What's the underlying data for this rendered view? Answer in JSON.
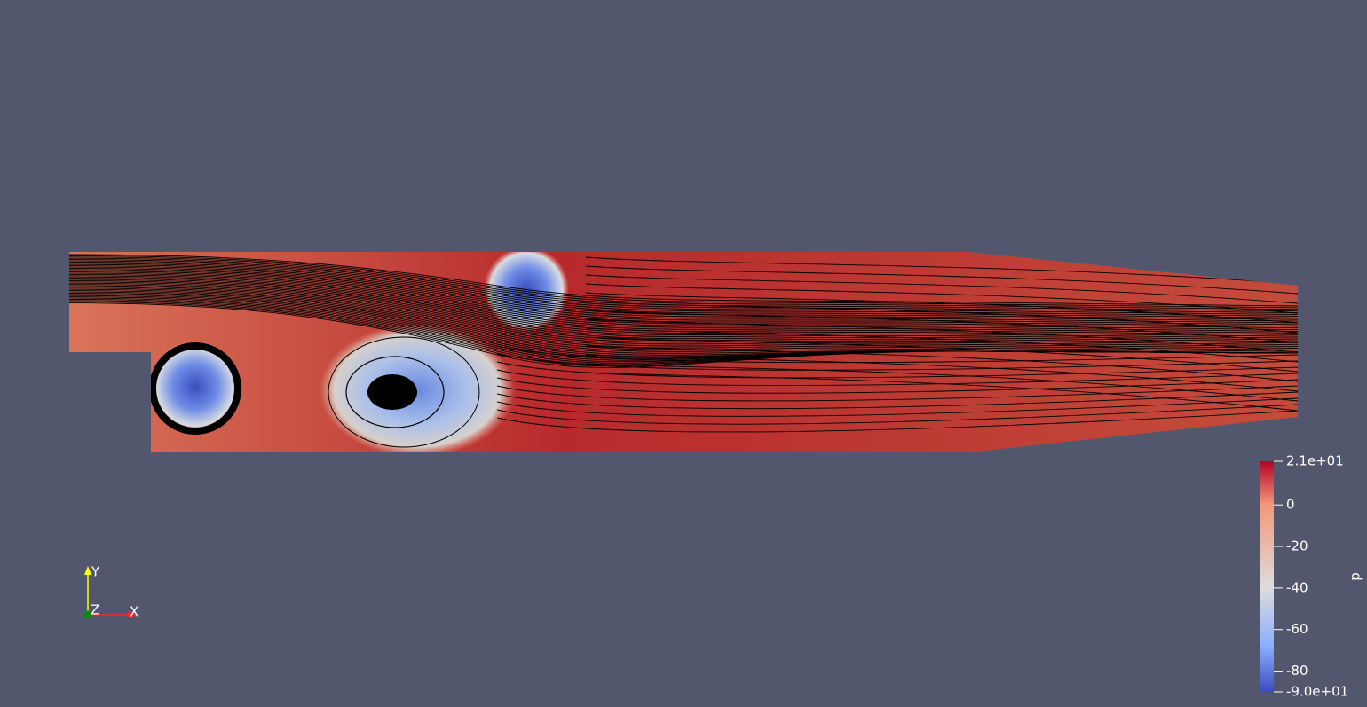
{
  "colorbar": {
    "title": "p",
    "range": [
      -90,
      21
    ],
    "ticks": [
      {
        "value": 21,
        "label": "2.1e+01"
      },
      0,
      -20,
      -40,
      -60,
      -80,
      {
        "value": -90,
        "label": "-9.0e+01"
      }
    ]
  },
  "axes": {
    "x": "X",
    "y": "Y",
    "z": "Z"
  }
}
